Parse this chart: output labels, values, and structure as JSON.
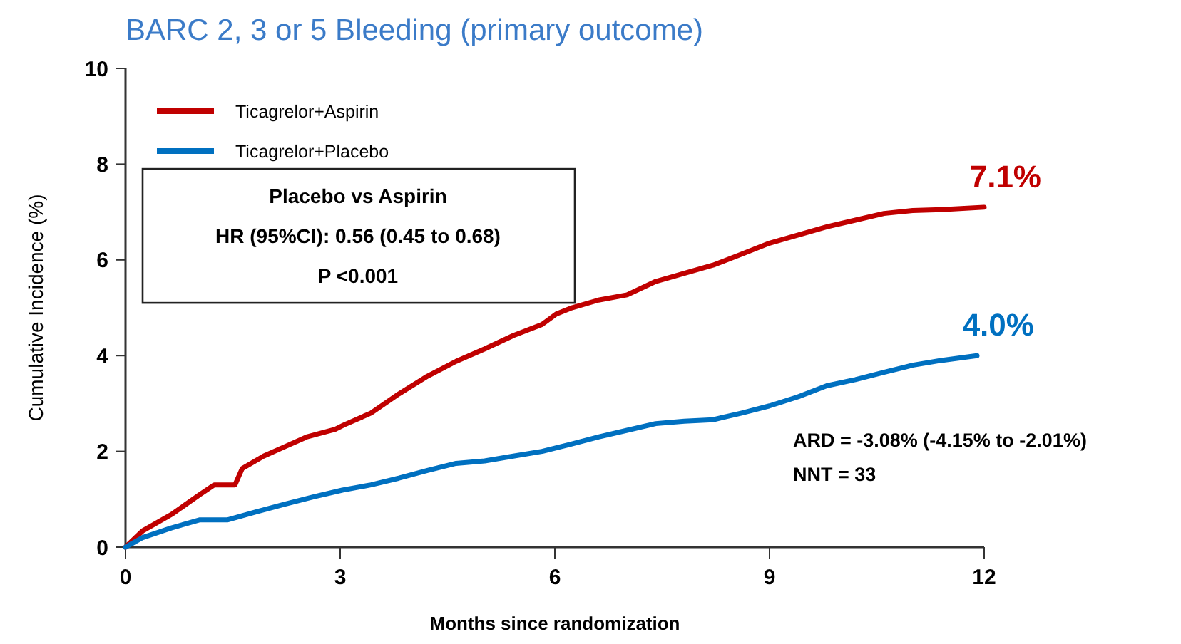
{
  "chart_data": {
    "type": "line",
    "title": "BARC 2, 3 or 5 Bleeding (primary outcome)",
    "xlabel": "Months since randomization",
    "ylabel": "Cumulative Incidence (%)",
    "xlim": [
      0,
      12
    ],
    "xticks": [
      0,
      3,
      6,
      9,
      12
    ],
    "ylim": [
      0,
      10
    ],
    "yticks": [
      0,
      2,
      4,
      6,
      8,
      10
    ],
    "grid": false,
    "legend": "top left",
    "line_style": "solid",
    "series": [
      {
        "name": "Ticagrelor+Aspirin",
        "color": "#c00000",
        "x": [
          0,
          0.24,
          0.64,
          1.04,
          1.24,
          1.53,
          1.63,
          1.93,
          2.23,
          2.53,
          2.93,
          3.05,
          3.43,
          3.82,
          4.22,
          4.62,
          5.02,
          5.42,
          5.82,
          6.02,
          6.22,
          6.61,
          7.01,
          7.41,
          7.81,
          8.21,
          8.61,
          9.0,
          9.4,
          9.8,
          10.2,
          10.6,
          11.0,
          11.4,
          12.0
        ],
        "values": [
          0,
          0.34,
          0.68,
          1.1,
          1.3,
          1.3,
          1.64,
          1.9,
          2.1,
          2.3,
          2.46,
          2.55,
          2.8,
          3.2,
          3.57,
          3.88,
          4.14,
          4.42,
          4.65,
          4.87,
          4.99,
          5.16,
          5.27,
          5.55,
          5.72,
          5.89,
          6.12,
          6.35,
          6.52,
          6.69,
          6.83,
          6.97,
          7.03,
          7.05,
          7.1
        ]
      },
      {
        "name": "Ticagrelor+Placebo",
        "color": "#0070c0",
        "x": [
          0,
          0.24,
          0.64,
          1.04,
          1.43,
          1.83,
          2.23,
          2.63,
          3.03,
          3.43,
          3.82,
          4.22,
          4.62,
          5.02,
          5.42,
          5.82,
          6.22,
          6.61,
          7.01,
          7.41,
          7.81,
          8.21,
          8.61,
          9.0,
          9.4,
          9.8,
          10.2,
          10.6,
          11.0,
          11.4,
          11.9
        ],
        "values": [
          0,
          0.2,
          0.4,
          0.57,
          0.57,
          0.74,
          0.9,
          1.05,
          1.19,
          1.3,
          1.44,
          1.6,
          1.75,
          1.8,
          1.9,
          2.0,
          2.15,
          2.3,
          2.44,
          2.58,
          2.63,
          2.66,
          2.8,
          2.95,
          3.14,
          3.37,
          3.5,
          3.65,
          3.8,
          3.9,
          4.0
        ]
      }
    ],
    "annotations": [
      "Placebo vs Aspirin",
      "HR (95%CI): 0.56 (0.45 to 0.68)",
      "P <0.001",
      {
        "text": "7.1%",
        "x": 12,
        "y": 7.1
      },
      {
        "text": "4.0%",
        "x": 11.9,
        "y": 4.0
      },
      "ARD = -3.08% (-4.15% to -2.01%)",
      "NNT = 33"
    ]
  }
}
